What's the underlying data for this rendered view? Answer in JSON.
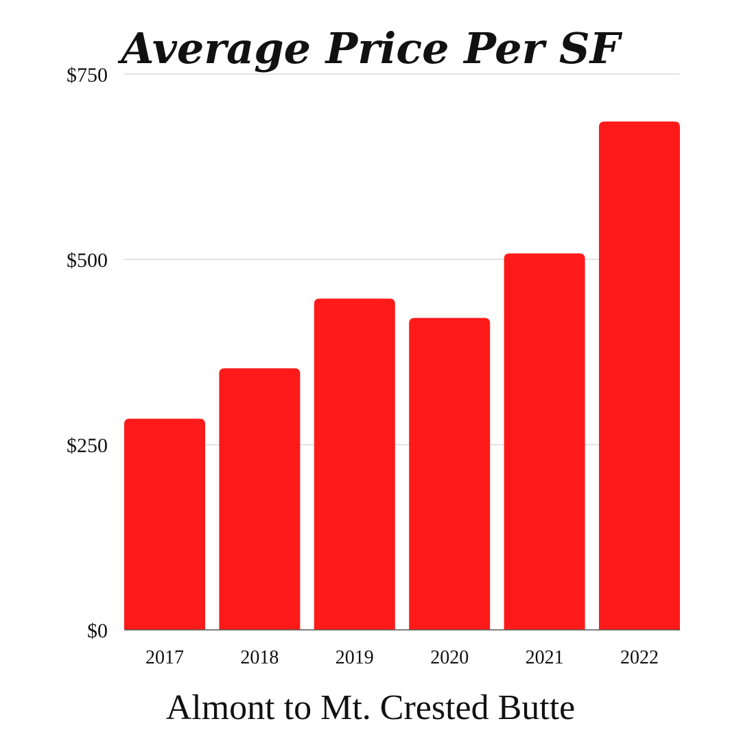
{
  "chart_data": {
    "type": "bar",
    "title": "Average Price Per SF",
    "subtitle": "Almont to Mt. Crested Butte",
    "categories": [
      "2017",
      "2018",
      "2019",
      "2020",
      "2021",
      "2022"
    ],
    "series": [
      {
        "values": [
          285,
          353,
          447,
          421,
          508,
          686
        ]
      }
    ],
    "ylim": [
      0,
      750
    ],
    "yticks": [
      0,
      250,
      500,
      750
    ],
    "ytick_labels": [
      "$0",
      "$250",
      "$500",
      "$750"
    ],
    "grid": true,
    "bar_color": "#ff1a1a"
  }
}
